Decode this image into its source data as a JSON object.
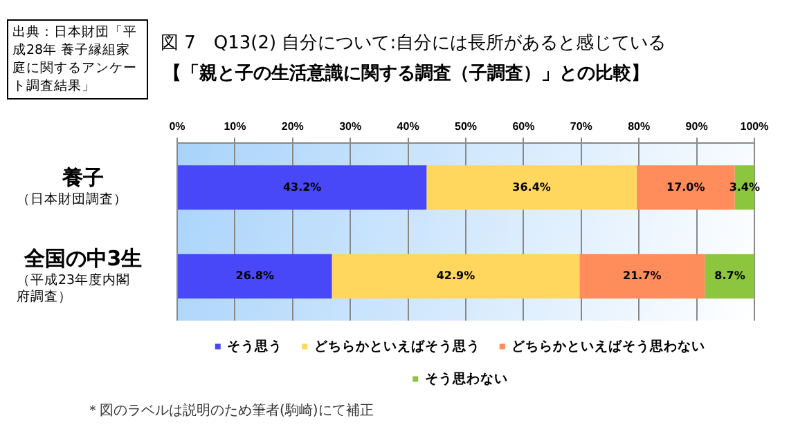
{
  "chart_data": {
    "type": "bar",
    "orientation": "horizontal",
    "stacked": true,
    "title": "図 7　Q13(2) 自分について:自分には長所があると感じている",
    "subtitle": "【「親と子の生活意識に関する調査（子調査）」との比較】",
    "categories": [
      "養子（日本財団調査）",
      "全国の中3生（平成23年度内閣府調査）"
    ],
    "series": [
      {
        "name": "そう思う",
        "color": "#4848f8",
        "values": [
          43.2,
          26.8
        ],
        "value_labels": [
          "43.2%",
          "26.8%"
        ]
      },
      {
        "name": "どちらかといえばそう思う",
        "color": "#ffd75e",
        "values": [
          36.4,
          42.9
        ],
        "value_labels": [
          "36.4%",
          "42.9%"
        ]
      },
      {
        "name": "どちらかといえばそう思わない",
        "color": "#ff8c5a",
        "values": [
          17.0,
          21.7
        ],
        "value_labels": [
          "17.0%",
          "21.7%"
        ]
      },
      {
        "name": "そう思わない",
        "color": "#8cc63f",
        "values": [
          3.4,
          8.7
        ],
        "value_labels": [
          "3.4%",
          "8.7%"
        ]
      }
    ],
    "xlim": [
      0,
      100
    ],
    "xticks": [
      {
        "value": 0,
        "label": "0%"
      },
      {
        "value": 10,
        "label": "10%"
      },
      {
        "value": 20,
        "label": "20%"
      },
      {
        "value": 30,
        "label": "30%"
      },
      {
        "value": 40,
        "label": "40%"
      },
      {
        "value": 50,
        "label": "50%"
      },
      {
        "value": 60,
        "label": "60%"
      },
      {
        "value": 70,
        "label": "70%"
      },
      {
        "value": 80,
        "label": "80%"
      },
      {
        "value": 90,
        "label": "90%"
      },
      {
        "value": 100,
        "label": "100%"
      }
    ],
    "grid": "x",
    "legend": "bottom",
    "annotations": [
      "出典：日本財団「平成28年 養子縁組家庭に関するアンケート調査結果」",
      "＊図のラベルは説明のため筆者(駒崎)にて補正"
    ]
  }
}
